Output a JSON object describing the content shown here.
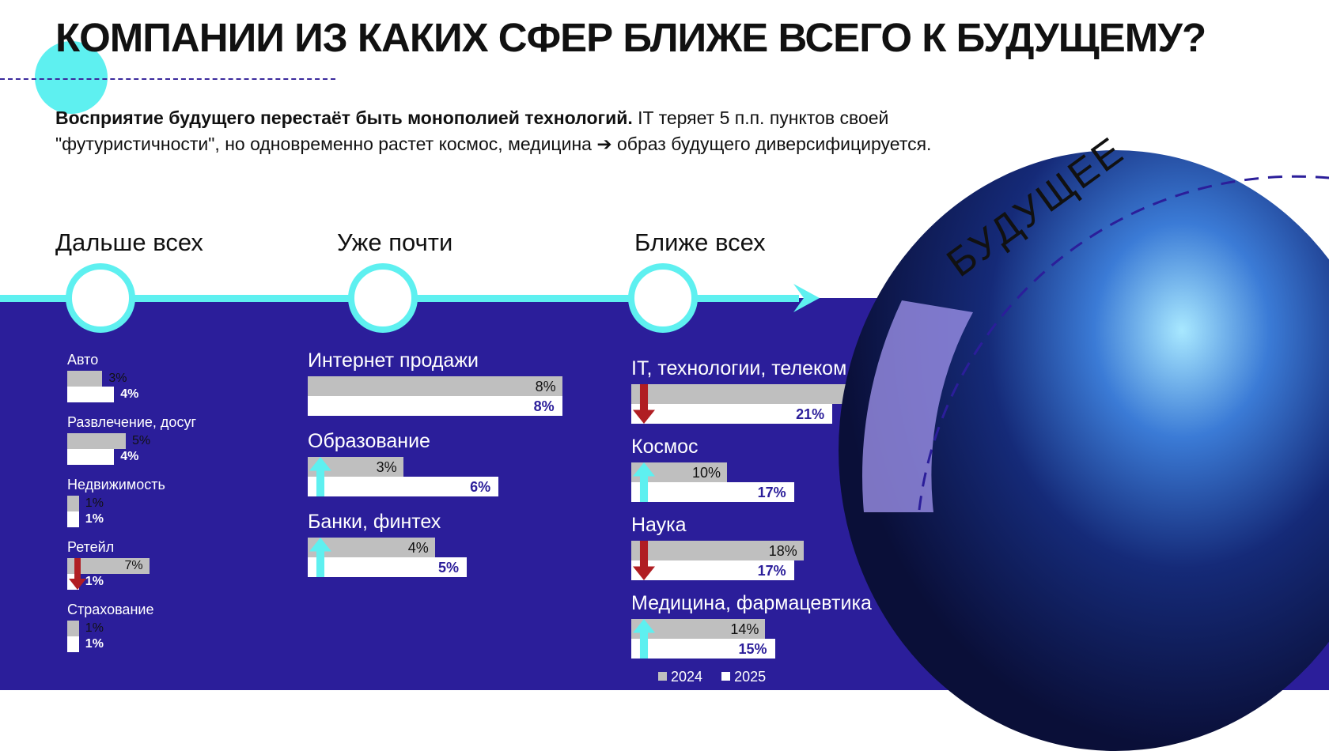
{
  "title": "КОМПАНИИ ИЗ КАКИХ СФЕР БЛИЖЕ ВСЕГО К БУДУЩЕМУ?",
  "subtitle_bold": "Восприятие будущего перестаёт быть монополией технологий.",
  "subtitle_rest": " IT теряет 5 п.п. пунктов своей \"футуристичности\", но одновременно растет космос, медицина ➔ образ будущего диверсифицируется.",
  "future_label": "БУДУЩЕЕ",
  "colors": {
    "band": "#2b1e9a",
    "cyan": "#5ef0f0",
    "bar2024": "#bfbfbf",
    "bar2025": "#ffffff",
    "up": "#5ef0f0",
    "down": "#b01e23",
    "value2025": "#2b1e9a"
  },
  "chart_data": {
    "type": "bar",
    "orientation": "horizontal",
    "unit": "%",
    "series_names": [
      "2024",
      "2025"
    ],
    "groups": [
      {
        "stage": "Дальше всех",
        "items": [
          {
            "name": "Авто",
            "v2024": 3,
            "v2025": 4,
            "trend": ""
          },
          {
            "name": "Развлечение, досуг",
            "v2024": 5,
            "v2025": 4,
            "trend": ""
          },
          {
            "name": "Недвижимость",
            "v2024": 1,
            "v2025": 1,
            "trend": ""
          },
          {
            "name": "Ретейл",
            "v2024": 7,
            "v2025": 1,
            "trend": "down"
          },
          {
            "name": "Страхование",
            "v2024": 1,
            "v2025": 1,
            "trend": ""
          }
        ]
      },
      {
        "stage": "Уже почти",
        "items": [
          {
            "name": "Интернет продажи",
            "v2024": 8,
            "v2025": 8,
            "trend": ""
          },
          {
            "name": "Образование",
            "v2024": 3,
            "v2025": 6,
            "trend": "up"
          },
          {
            "name": "Банки, финтех",
            "v2024": 4,
            "v2025": 5,
            "trend": "up"
          }
        ]
      },
      {
        "stage": "Ближе всех",
        "items": [
          {
            "name": "IT, технологии, телеком",
            "v2024": 26,
            "v2025": 21,
            "trend": "down"
          },
          {
            "name": "Космос",
            "v2024": 10,
            "v2025": 17,
            "trend": "up"
          },
          {
            "name": "Наука",
            "v2024": 18,
            "v2025": 17,
            "trend": "down"
          },
          {
            "name": "Медицина, фармацевтика",
            "v2024": 14,
            "v2025": 15,
            "trend": "up"
          }
        ]
      }
    ]
  }
}
